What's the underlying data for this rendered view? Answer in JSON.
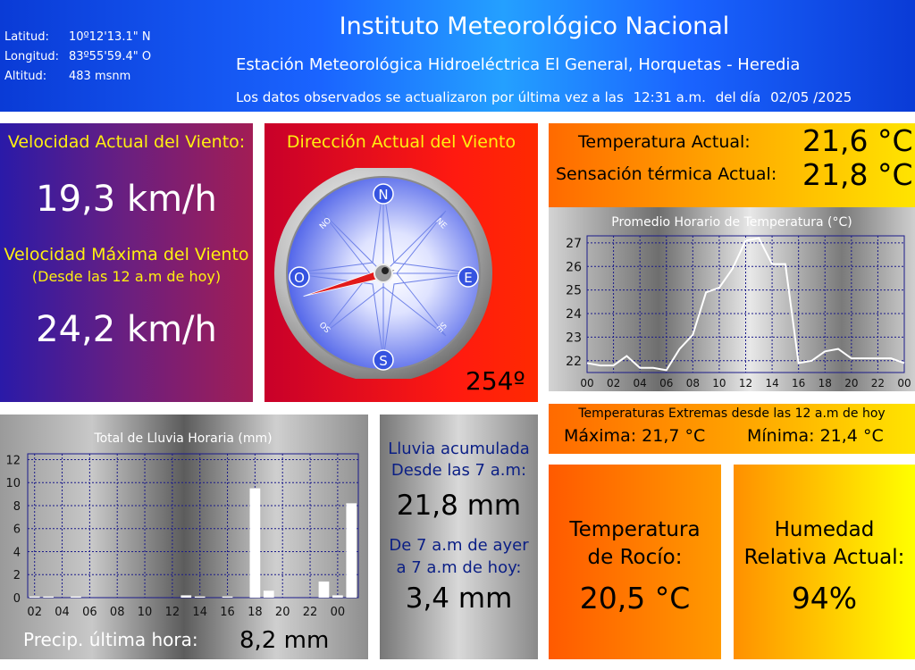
{
  "header": {
    "latitude_label": "Latitud:",
    "latitude_value": "10º12'13.1\" N",
    "longitude_label": "Longitud:",
    "longitude_value": "83º55'59.4\" O",
    "altitude_label": "Altitud:",
    "altitude_value": "483 msnm",
    "title": "Instituto Meteorológico Nacional",
    "station": "Estación Meteorológica Hidroeléctrica El General, Horquetas - Heredia",
    "update_prefix": "Los datos observados se actualizaron por última vez a las",
    "update_time": "12:31 a.m.",
    "update_mid": "del día",
    "update_date": "02/05 /2025"
  },
  "wind": {
    "current_label": "Velocidad Actual del Viento:",
    "current_value": "19,3 km/h",
    "max_label": "Velocidad Máxima del Viento",
    "max_sub": "(Desde las 12 a.m de hoy)",
    "max_value": "24,2 km/h"
  },
  "direction": {
    "label": "Dirección Actual del Viento",
    "degrees": "254º",
    "degrees_value": 254,
    "compass": {
      "n": "N",
      "e": "E",
      "s": "S",
      "o": "O",
      "ne": "NE",
      "no": "NO",
      "so": "SO",
      "se": "SE"
    }
  },
  "temperature": {
    "current_label": "Temperatura Actual:",
    "current_value": "21,6 °C",
    "feels_label": "Sensación térmica Actual:",
    "feels_value": "21,8 °C"
  },
  "extremes": {
    "label": "Temperaturas Extremas desde las 12 a.m de hoy",
    "max_label": "Máxima:",
    "max_value": "21,7 °C",
    "min_label": "Mínima:",
    "min_value": "21,4 °C"
  },
  "rain_summary": {
    "acc_label_1": "Lluvia acumulada",
    "acc_label_2": "Desde las 7 a.m:",
    "acc_value": "21,8 mm",
    "prev_label_1": "De 7 a.m de ayer",
    "prev_label_2": "a 7 a.m de hoy:",
    "prev_value": "3,4 mm",
    "last_hour_label": "Precip. última hora:",
    "last_hour_value": "8,2 mm"
  },
  "dew": {
    "label_1": "Temperatura",
    "label_2": "de Rocío:",
    "value": "20,5 °C"
  },
  "humidity": {
    "label_1": "Humedad",
    "label_2": "Relativa Actual:",
    "value": "94%"
  },
  "chart_data": [
    {
      "type": "line",
      "title": "Promedio Horario de Temperatura (°C)",
      "ylim": [
        21.5,
        27.3
      ],
      "yticks": [
        22,
        23,
        24,
        25,
        26,
        27
      ],
      "xticks": [
        "00",
        "02",
        "04",
        "06",
        "08",
        "10",
        "12",
        "14",
        "16",
        "18",
        "20",
        "22",
        "00"
      ],
      "grid": true,
      "x": [
        0,
        1,
        2,
        3,
        4,
        5,
        6,
        7,
        8,
        9,
        10,
        11,
        12,
        13,
        14,
        15,
        16,
        17,
        18,
        19,
        20,
        21,
        22,
        23,
        24
      ],
      "values": [
        21.9,
        21.8,
        21.8,
        22.2,
        21.7,
        21.7,
        21.6,
        22.5,
        23.1,
        24.9,
        25.1,
        25.9,
        27.1,
        27.2,
        26.1,
        26.1,
        21.9,
        22.0,
        22.4,
        22.5,
        22.1,
        22.1,
        22.1,
        22.1,
        21.9
      ]
    },
    {
      "type": "bar",
      "title": "Total de Lluvia Horaria (mm)",
      "ylim": [
        0,
        12.5
      ],
      "yticks": [
        0,
        2,
        4,
        6,
        8,
        10,
        12
      ],
      "xticks": [
        "02",
        "04",
        "06",
        "08",
        "10",
        "12",
        "14",
        "16",
        "18",
        "20",
        "22",
        "00"
      ],
      "grid": true,
      "x": [
        1,
        2,
        3,
        4,
        5,
        6,
        7,
        8,
        9,
        10,
        11,
        12,
        13,
        14,
        15,
        16,
        17,
        18,
        19,
        20,
        21,
        22,
        23,
        24
      ],
      "values": [
        0.1,
        0.1,
        0,
        0.1,
        0,
        0,
        0,
        0,
        0,
        0,
        0,
        0.2,
        0.1,
        0,
        0.1,
        0,
        9.5,
        0.6,
        0,
        0,
        0,
        1.4,
        0.2,
        8.2
      ]
    }
  ]
}
